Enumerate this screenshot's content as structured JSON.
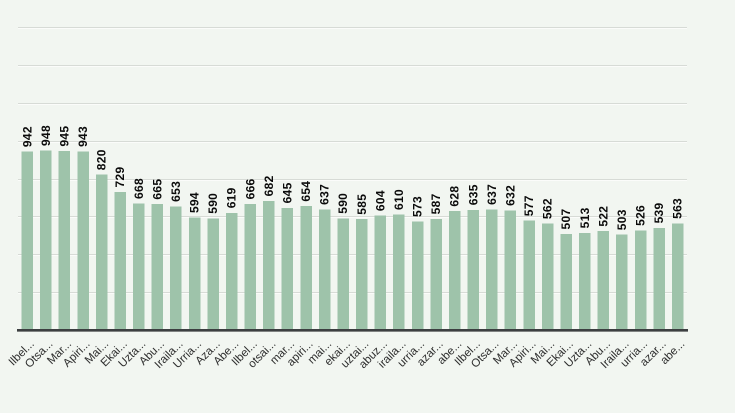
{
  "chart_data": {
    "type": "bar",
    "title": "",
    "xlabel": "",
    "ylabel": "",
    "categories": [
      "Ilbel...",
      "Otsa...",
      "Mar...",
      "Apiri...",
      "Mai...",
      "Ekai...",
      "Uzta...",
      "Abu...",
      "Iraila...",
      "Urria...",
      "Aza...",
      "Abe...",
      "Ilbel...",
      "otsai...",
      "mar...",
      "apiri...",
      "mai...",
      "ekai...",
      "uztai...",
      "abuz...",
      "iraila...",
      "urria...",
      "azar...",
      "abe...",
      "Ilbel...",
      "Otsa...",
      "Mar...",
      "Apiri...",
      "Mai...",
      "Ekai...",
      "Uzta...",
      "Abu...",
      "Iraila...",
      "urria...",
      "azar...",
      "abe..."
    ],
    "values": [
      942,
      948,
      945,
      943,
      820,
      729,
      668,
      665,
      653,
      594,
      590,
      619,
      666,
      682,
      645,
      654,
      637,
      590,
      585,
      604,
      610,
      573,
      587,
      628,
      635,
      637,
      632,
      577,
      562,
      507,
      513,
      522,
      503,
      526,
      539,
      563
    ],
    "ylim": [
      0,
      1600
    ],
    "grid_step": 200,
    "grid": "horizontal",
    "legend": "none",
    "value_labels": "rotated-90-above-bars",
    "category_labels": "rotated-45",
    "colors": {
      "background": "#f2f6f1",
      "bar": "#9ec3aa",
      "gridline": "#d7dbd6",
      "gridline_highlight": "#fbfcfa",
      "axis": "#3c3f41",
      "value_label": "#0b0b0b",
      "category_label": "#2e2e2e"
    }
  }
}
